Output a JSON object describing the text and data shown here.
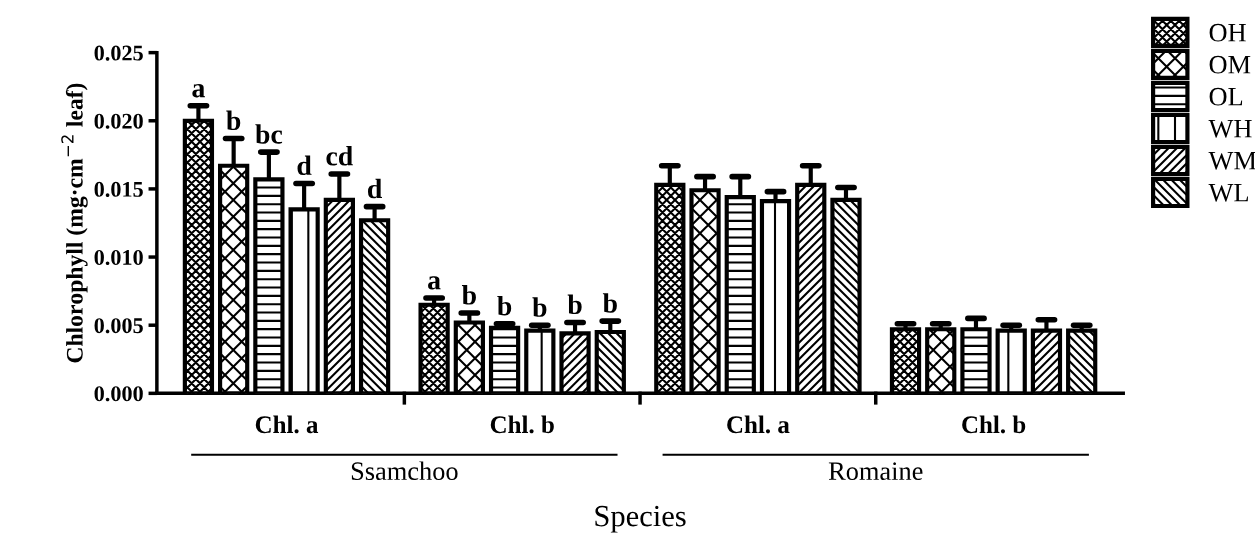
{
  "chart_data": {
    "type": "bar",
    "xlabel": "Species",
    "ylabel": "Chlorophyll (mg·cm$^{−2}$ leaf)",
    "categories": [
      "Chl. a",
      "Chl. b",
      "Chl. a",
      "Chl. b"
    ],
    "series": [
      {
        "name": "OH",
        "color": "#000000",
        "values": [
          0.02,
          0.0065,
          0.0153,
          0.0047
        ],
        "errors": [
          [
            0.02,
            0.0211
          ],
          [
            0.0065,
            0.007
          ],
          [
            0.0153,
            0.0167
          ],
          [
            0.0047,
            0.0051
          ]
        ],
        "value_labels": [
          "a",
          "a",
          null,
          null
        ]
      },
      {
        "name": "OM",
        "color": "#000000",
        "values": [
          0.0167,
          0.0052,
          0.0149,
          0.0047
        ],
        "errors": [
          [
            0.0167,
            0.0187
          ],
          [
            0.0052,
            0.0059
          ],
          [
            0.0149,
            0.0159
          ],
          [
            0.0047,
            0.0051
          ]
        ],
        "value_labels": [
          "b",
          "b",
          null,
          null
        ]
      },
      {
        "name": "OL",
        "color": "#000000",
        "values": [
          0.0157,
          0.0048,
          0.0144,
          0.0047
        ],
        "errors": [
          [
            0.0157,
            0.0177
          ],
          [
            0.0048,
            0.0051
          ],
          [
            0.0144,
            0.0159
          ],
          [
            0.0047,
            0.0055
          ]
        ],
        "value_labels": [
          "bc",
          "b",
          null,
          null
        ]
      },
      {
        "name": "WH",
        "color": "#000000",
        "values": [
          0.0135,
          0.0046,
          0.0141,
          0.0046
        ],
        "errors": [
          [
            0.0135,
            0.0154
          ],
          [
            0.0046,
            0.005
          ],
          [
            0.0141,
            0.0148
          ],
          [
            0.0046,
            0.005
          ]
        ],
        "value_labels": [
          "d",
          "b",
          null,
          null
        ]
      },
      {
        "name": "WM",
        "color": "#000000",
        "values": [
          0.0142,
          0.0044,
          0.0153,
          0.0046
        ],
        "errors": [
          [
            0.0142,
            0.0161
          ],
          [
            0.0044,
            0.0052
          ],
          [
            0.0153,
            0.0167
          ],
          [
            0.0046,
            0.0054
          ]
        ],
        "value_labels": [
          "cd",
          "b",
          null,
          null
        ]
      },
      {
        "name": "WL",
        "color": "#000000",
        "values": [
          0.0127,
          0.0045,
          0.0142,
          0.0046
        ],
        "errors": [
          [
            0.0127,
            0.0137
          ],
          [
            0.0045,
            0.0053
          ],
          [
            0.0142,
            0.0151
          ],
          [
            0.0046,
            0.005
          ]
        ],
        "value_labels": [
          "d",
          "b",
          null,
          null
        ]
      }
    ],
    "ylim": [
      0,
      0.025
    ],
    "yticks": [
      {
        "value": 0,
        "label": "0.000"
      },
      {
        "value": 0.005,
        "label": "0.005"
      },
      {
        "value": 0.01,
        "label": "0.010"
      },
      {
        "value": 0.015,
        "label": "0.015"
      },
      {
        "value": 0.02,
        "label": "0.020"
      },
      {
        "value": 0.025,
        "label": "0.025"
      }
    ],
    "annotations": [
      "Ssamchoo",
      "Romaine"
    ],
    "legend": "top right",
    "grid": false
  }
}
